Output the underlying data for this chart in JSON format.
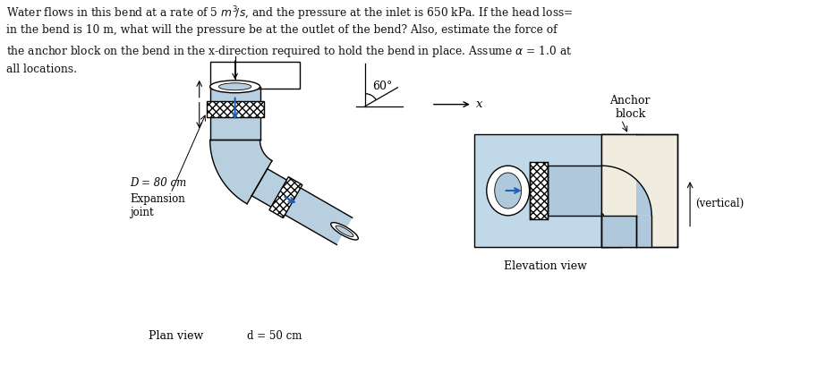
{
  "pipe_blue": "#b8cfe0",
  "pipe_outline": "#222222",
  "bg_color": "#ffffff",
  "arrow_blue": "#2060b0",
  "anchor_fill": "#f0ede0",
  "text_color": "#111111",
  "label_D": "D = 80 cm",
  "label_d": "d = 50 cm",
  "label_exp": "Expansion\njoint",
  "label_plan": "Plan view",
  "label_elev": "Elevation view",
  "label_anchor": "Anchor\nblock",
  "label_vertical": "(vertical)",
  "angle_label": "60°",
  "x_label": "x",
  "lw": 1.0
}
